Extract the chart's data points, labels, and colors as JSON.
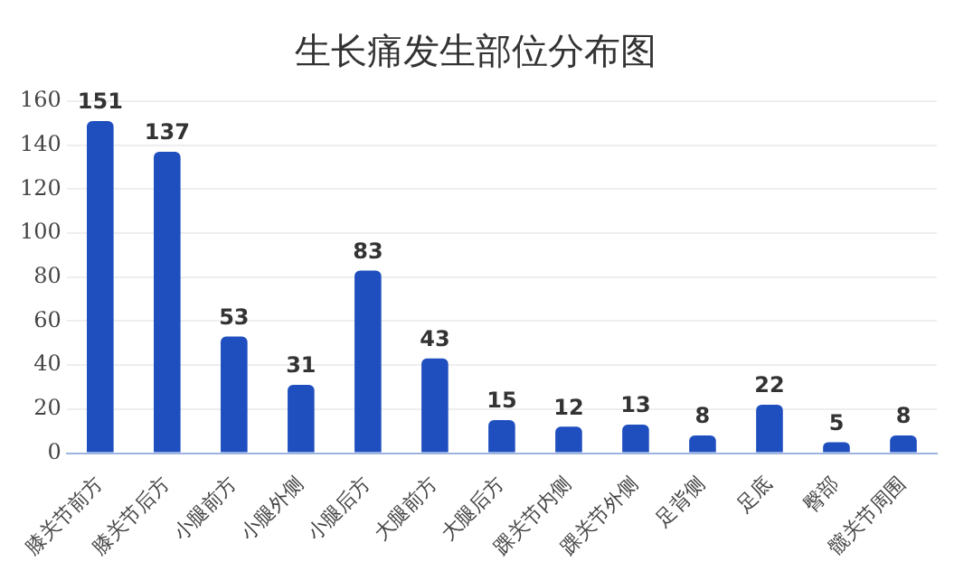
{
  "chart_data": {
    "type": "bar",
    "title": "生长痛发生部位分布图",
    "categories": [
      "膝关节前方",
      "膝关节后方",
      "小腿前方",
      "小腿外侧",
      "小腿后方",
      "大腿前方",
      "大腿后方",
      "踝关节内侧",
      "踝关节外侧",
      "足背侧",
      "足底",
      "臀部",
      "髋关节周围"
    ],
    "values": [
      151,
      137,
      53,
      31,
      83,
      43,
      15,
      12,
      13,
      8,
      22,
      5,
      8
    ],
    "color": "#1f4fbf",
    "ylim": [
      0,
      160
    ],
    "yticks": [
      0,
      20,
      40,
      60,
      80,
      100,
      120,
      140,
      160
    ],
    "grid": "y",
    "data_labels": true
  }
}
